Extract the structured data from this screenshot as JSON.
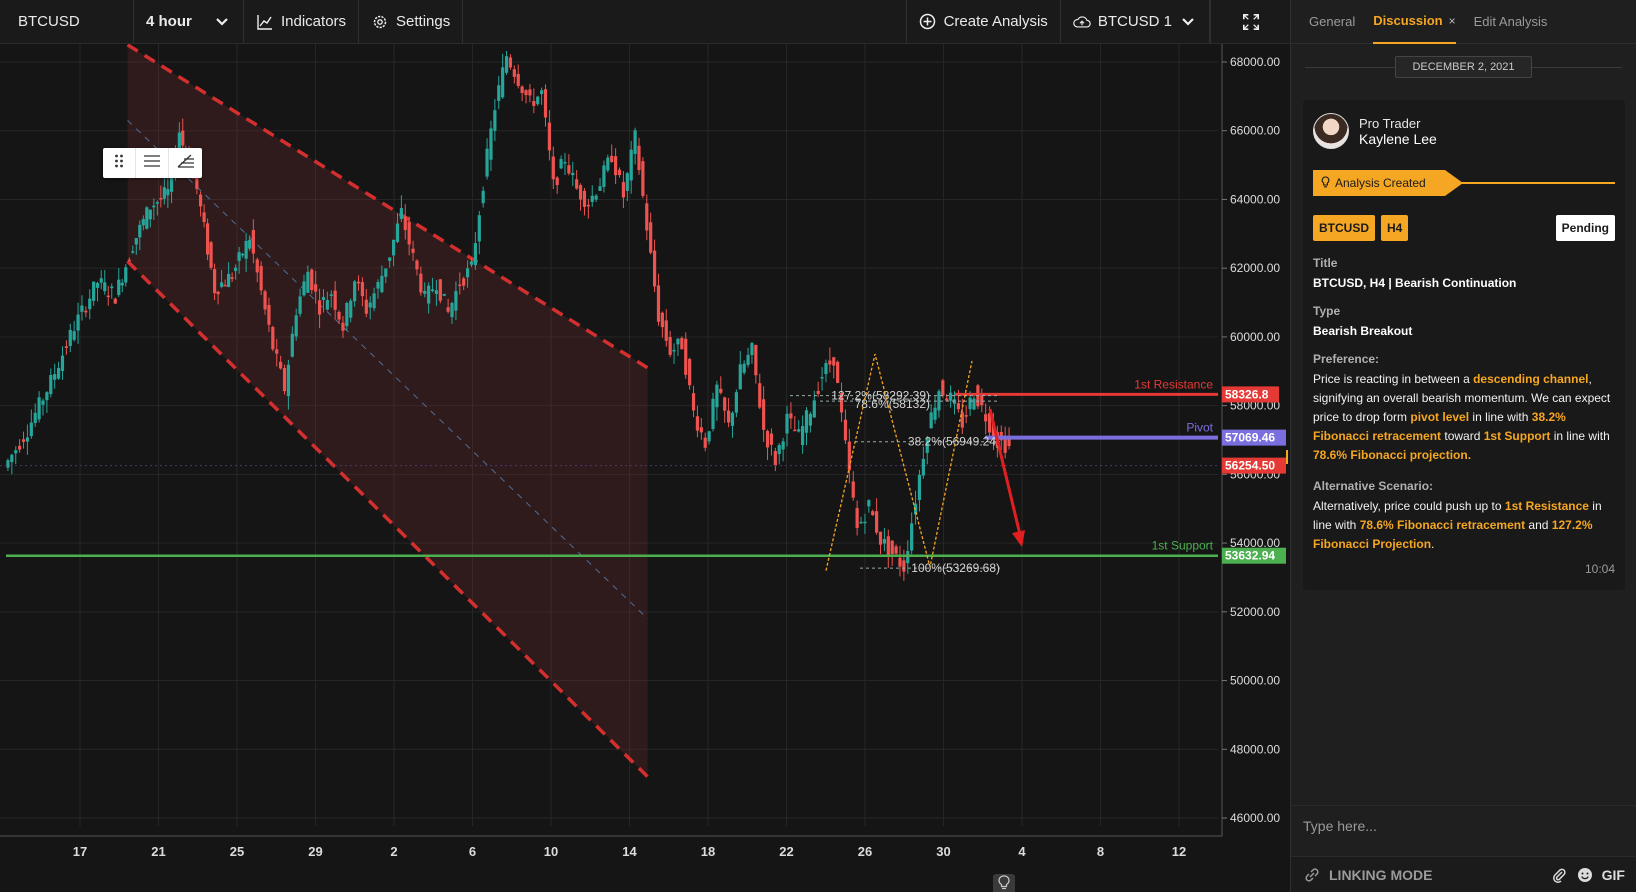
{
  "toolbar": {
    "symbol": "BTCUSD",
    "interval": "4 hour",
    "indicators_label": "Indicators",
    "settings_label": "Settings",
    "create_analysis_label": "Create Analysis",
    "layout_label": "BTCUSD 1"
  },
  "chart_data": {
    "type": "candlestick",
    "symbol": "BTCUSD",
    "timeframe": "H4",
    "x_ticks": [
      "17",
      "21",
      "25",
      "29",
      "2",
      "6",
      "10",
      "14",
      "18",
      "22",
      "26",
      "30",
      "4",
      "8",
      "12"
    ],
    "y_ticks": [
      "68000.00",
      "66000.00",
      "64000.00",
      "62000.00",
      "60000.00",
      "58000.00",
      "56000.00",
      "54000.00",
      "52000.00",
      "50000.00",
      "48000.00",
      "46000.00"
    ],
    "ylim": [
      45000,
      69000
    ],
    "grid": true,
    "price_path": [
      [
        0,
        56200
      ],
      [
        4,
        57300
      ],
      [
        8,
        58700
      ],
      [
        12,
        60300
      ],
      [
        16,
        61600
      ],
      [
        19,
        61200
      ],
      [
        22,
        62700
      ],
      [
        25,
        63800
      ],
      [
        28,
        64200
      ],
      [
        30,
        66000
      ],
      [
        31,
        65200
      ],
      [
        33,
        64300
      ],
      [
        36,
        61400
      ],
      [
        39,
        61800
      ],
      [
        42,
        62900
      ],
      [
        44,
        61300
      ],
      [
        46,
        59700
      ],
      [
        48,
        58500
      ],
      [
        50,
        60800
      ],
      [
        52,
        61900
      ],
      [
        54,
        60900
      ],
      [
        56,
        61300
      ],
      [
        58,
        60300
      ],
      [
        60,
        61700
      ],
      [
        62,
        60800
      ],
      [
        64,
        61500
      ],
      [
        66,
        62400
      ],
      [
        68,
        63600
      ],
      [
        70,
        62300
      ],
      [
        72,
        61100
      ],
      [
        74,
        61600
      ],
      [
        76,
        60700
      ],
      [
        78,
        61600
      ],
      [
        80,
        62000
      ],
      [
        82,
        64500
      ],
      [
        84,
        66700
      ],
      [
        86,
        68200
      ],
      [
        88,
        67500
      ],
      [
        90,
        66800
      ],
      [
        92,
        67100
      ],
      [
        94,
        64400
      ],
      [
        96,
        65200
      ],
      [
        98,
        64300
      ],
      [
        100,
        63900
      ],
      [
        102,
        64500
      ],
      [
        104,
        65300
      ],
      [
        106,
        64100
      ],
      [
        108,
        65800
      ],
      [
        110,
        63200
      ],
      [
        112,
        60600
      ],
      [
        114,
        59600
      ],
      [
        116,
        59800
      ],
      [
        118,
        57800
      ],
      [
        120,
        56900
      ],
      [
        122,
        58500
      ],
      [
        124,
        57400
      ],
      [
        126,
        59000
      ],
      [
        128,
        59600
      ],
      [
        130,
        57300
      ],
      [
        132,
        56400
      ],
      [
        134,
        57600
      ],
      [
        136,
        57100
      ],
      [
        138,
        57900
      ],
      [
        140,
        58900
      ],
      [
        142,
        59400
      ],
      [
        144,
        56800
      ],
      [
        146,
        54400
      ],
      [
        148,
        55100
      ],
      [
        150,
        54100
      ],
      [
        152,
        53700
      ],
      [
        154,
        53300
      ],
      [
        156,
        55300
      ],
      [
        158,
        57300
      ],
      [
        160,
        58500
      ],
      [
        162,
        58200
      ],
      [
        164,
        57500
      ],
      [
        166,
        58400
      ],
      [
        168,
        57700
      ],
      [
        170,
        57000
      ],
      [
        172,
        56800
      ]
    ],
    "descending_channel": {
      "upper": [
        [
          6.5,
          68500
        ],
        [
          33,
          59100
        ]
      ],
      "lower": [
        [
          0,
          62200
        ],
        [
          33,
          47200
        ]
      ],
      "mid": [
        [
          0,
          66300
        ],
        [
          33,
          51800
        ]
      ]
    },
    "horizontal_levels": [
      {
        "label": "1st Resistance",
        "price_label": "58326.8",
        "value": 58326.8,
        "color": "#e53935"
      },
      {
        "label": "Pivot",
        "price_label": "57069.46",
        "value": 57069.46,
        "color": "#7b6fe0"
      },
      {
        "label": "",
        "price_label": "56254.50",
        "value": 56254.5,
        "color": "#e53935"
      },
      {
        "label": "1st Support",
        "price_label": "53632.94",
        "value": 53632.94,
        "color": "#4caf50"
      }
    ],
    "fibonacci": [
      {
        "label": "127.2%(58292.39)",
        "value": 58292.39
      },
      {
        "label": "78.6%(58132)",
        "value": 58132
      },
      {
        "label": "38.2%(56949.24)",
        "value": 56949.24
      },
      {
        "label": "100%(53269.68)",
        "value": 53269.68
      }
    ],
    "projection_arrow": {
      "from": [
        30.4,
        57700
      ],
      "to": [
        31.5,
        54500
      ]
    }
  },
  "panel": {
    "tabs": {
      "general": "General",
      "discussion": "Discussion",
      "close": "×",
      "edit": "Edit Analysis"
    },
    "date": "DECEMBER 2, 2021",
    "author_role": "Pro Trader",
    "author_name": "Kaylene Lee",
    "ribbon": "Analysis Created",
    "badge_symbol": "BTCUSD",
    "badge_timeframe": "H4",
    "status": "Pending",
    "title_label": "Title",
    "title_value": "BTCUSD, H4 | Bearish Continuation",
    "type_label": "Type",
    "type_value": "Bearish Breakout",
    "preference_label": "Preference:",
    "pref": {
      "t1": "Price is reacting in between a ",
      "h1": "descending channel",
      "t2": ", signifying an overall bearish momentum. We can expect price to drop form ",
      "h2": "pivot level",
      "t3": " in line with ",
      "h3": "38.2% Fibonacci retracement",
      "t4": " toward ",
      "h4": "1st Support",
      "t5": " in line with ",
      "h5": "78.6% Fibonacci projection."
    },
    "alt_label": "Alternative Scenario:",
    "alt": {
      "t1": "Alternatively, price could push up to ",
      "h1": "1st Resistance",
      "t2": " in line with ",
      "h2": "78.6% Fibonacci retracement",
      "t3": " and ",
      "h3": "127.2% Fibonacci Projection",
      "t4": "."
    },
    "time": "10:04",
    "input_placeholder": "Type here...",
    "linking_mode": "LINKING MODE",
    "gif": "GIF"
  }
}
